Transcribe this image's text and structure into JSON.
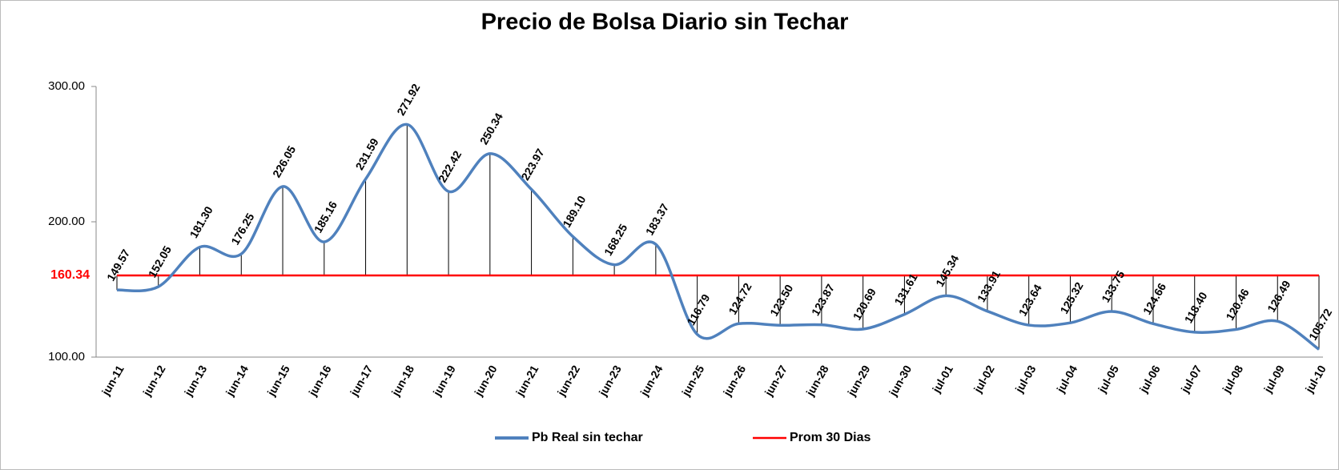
{
  "chart_data": {
    "type": "line",
    "title": "Precio de Bolsa Diario sin Techar",
    "categories": [
      "jun-11",
      "jun-12",
      "jun-13",
      "jun-14",
      "jun-15",
      "jun-16",
      "jun-17",
      "jun-18",
      "jun-19",
      "jun-20",
      "jun-21",
      "jun-22",
      "jun-23",
      "jun-24",
      "jun-25",
      "jun-26",
      "jun-27",
      "jun-28",
      "jun-29",
      "jun-30",
      "jul-01",
      "jul-02",
      "jul-03",
      "jul-04",
      "jul-05",
      "jul-06",
      "jul-07",
      "jul-08",
      "jul-09",
      "jul-10"
    ],
    "series": [
      {
        "name": "Pb Real sin techar",
        "color": "#4f81bd",
        "values": [
          149.57,
          152.05,
          181.3,
          176.25,
          226.05,
          185.16,
          231.59,
          271.92,
          222.42,
          250.34,
          223.97,
          189.1,
          168.25,
          183.37,
          116.79,
          124.72,
          123.5,
          123.87,
          120.69,
          131.61,
          145.34,
          133.91,
          123.64,
          125.32,
          133.75,
          124.66,
          118.4,
          120.46,
          126.49,
          105.72
        ],
        "value_labels": [
          "149.57",
          "152.05",
          "181.30",
          "176.25",
          "226.05",
          "185.16",
          "231.59",
          "271.92",
          "222.42",
          "250.34",
          "223.97",
          "189.10",
          "168.25",
          "183.37",
          "116.79",
          "124.72",
          "123.50",
          "123.87",
          "120.69",
          "131.61",
          "145.34",
          "133.91",
          "123.64",
          "125.32",
          "133.75",
          "124.66",
          "118.40",
          "120.46",
          "126.49",
          "105.72"
        ]
      }
    ],
    "reference_line": {
      "name": "Prom 30 Dias",
      "value": 160.34,
      "color": "#ff0000"
    },
    "ylim": [
      100,
      300
    ],
    "yticks": [
      {
        "value": 100,
        "label": "100.00"
      },
      {
        "value": 200,
        "label": "200.00"
      },
      {
        "value": 300,
        "label": "300.00"
      }
    ]
  }
}
